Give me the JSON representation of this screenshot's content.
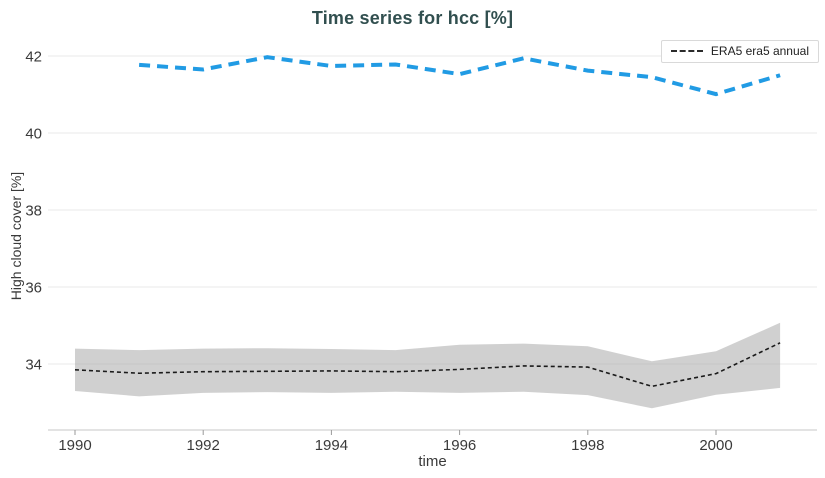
{
  "colors": {
    "title": "#314f4f",
    "tick_text": "#3a3a3a",
    "grid": "#e9e9e9",
    "axis_line": "#d2d2d2",
    "band_fill": "#cccccc",
    "era5_line": "#1a1a1a",
    "blue_line": "#219be4",
    "legend_border": "#d9d9d9",
    "background": "#ffffff"
  },
  "legend": {
    "position": "top-right",
    "entries": [
      {
        "label": "ERA5 era5 annual",
        "sample_style": "dashed",
        "sample_color": "#2b2b2b"
      }
    ]
  },
  "chart_data": {
    "type": "line",
    "title": "Time series for hcc [%]",
    "xlabel": "time",
    "ylabel": "High cloud cover [%]",
    "x_ticks": [
      1990,
      1992,
      1994,
      1996,
      1998,
      2000
    ],
    "y_ticks": [
      34,
      36,
      38,
      40,
      42
    ],
    "xlim": [
      1989.5,
      2001.6
    ],
    "ylim": [
      32.3,
      42.4
    ],
    "grid": true,
    "legend_position": "top-right",
    "series": [
      {
        "name": "ERA5 era5 annual",
        "color": "#1a1a1a",
        "line_style": "dashed",
        "line_width": 1.6,
        "in_legend": true,
        "x": [
          1990,
          1991,
          1992,
          1993,
          1994,
          1995,
          1996,
          1997,
          1998,
          1999,
          2000,
          2001
        ],
        "values": [
          33.85,
          33.76,
          33.8,
          33.81,
          33.82,
          33.8,
          33.86,
          33.95,
          33.92,
          33.42,
          33.75,
          34.55
        ],
        "band_upper": [
          34.4,
          34.36,
          34.4,
          34.41,
          34.39,
          34.36,
          34.5,
          34.53,
          34.46,
          34.07,
          34.33,
          35.07
        ],
        "band_lower": [
          33.3,
          33.16,
          33.25,
          33.27,
          33.25,
          33.28,
          33.25,
          33.28,
          33.19,
          32.85,
          33.2,
          33.38
        ],
        "band_color": "#cccccc"
      },
      {
        "name": "",
        "color": "#219be4",
        "line_style": "dashed",
        "line_width": 4,
        "in_legend": false,
        "x": [
          1991,
          1992,
          1993,
          1994,
          1995,
          1996,
          1997,
          1998,
          1999,
          2000,
          2001
        ],
        "values": [
          41.77,
          41.65,
          41.97,
          41.74,
          41.78,
          41.53,
          41.94,
          41.62,
          41.45,
          41.01,
          41.5
        ]
      }
    ]
  }
}
